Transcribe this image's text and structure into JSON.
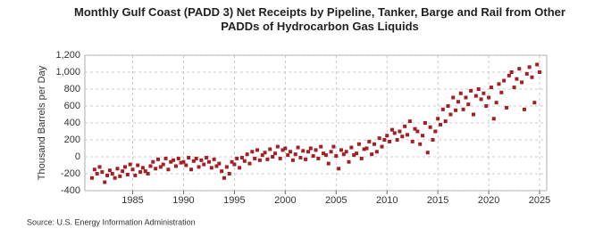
{
  "chart_data": {
    "type": "scatter",
    "title": "Monthly Gulf Coast (PADD 3) Net Receipts by Pipeline, Tanker, Barge and Rail from Other PADDs of Hydrocarbon Gas Liquids",
    "y_label": "Thousand Barrels per Day",
    "source": "Source: U.S. Energy Information Administration",
    "color": "#a31f24",
    "grid": true,
    "xlim": [
      1980.3,
      2025.7
    ],
    "ylim": [
      -400,
      1200
    ],
    "xticks": [
      1985,
      1990,
      1995,
      2000,
      2005,
      2010,
      2015,
      2020,
      2025
    ],
    "yticks": [
      {
        "value": 1200,
        "label": "1,200"
      },
      {
        "value": 1000,
        "label": "1,000"
      },
      800,
      600,
      400,
      200,
      0,
      -200,
      -400
    ],
    "x": [
      1981,
      1981.25,
      1981.5,
      1981.75,
      1982,
      1982.25,
      1982.5,
      1982.75,
      1983,
      1983.25,
      1983.5,
      1983.75,
      1984,
      1984.25,
      1984.5,
      1984.75,
      1985,
      1985.25,
      1985.5,
      1985.75,
      1986,
      1986.25,
      1986.5,
      1986.75,
      1987,
      1987.25,
      1987.5,
      1987.75,
      1988,
      1988.25,
      1988.5,
      1988.75,
      1989,
      1989.25,
      1989.5,
      1989.75,
      1990,
      1990.25,
      1990.5,
      1990.75,
      1991,
      1991.25,
      1991.5,
      1991.75,
      1992,
      1992.25,
      1992.5,
      1992.75,
      1993,
      1993.25,
      1993.5,
      1993.75,
      1994,
      1994.25,
      1994.5,
      1994.75,
      1995,
      1995.25,
      1995.5,
      1995.75,
      1996,
      1996.25,
      1996.5,
      1996.75,
      1997,
      1997.25,
      1997.5,
      1997.75,
      1998,
      1998.25,
      1998.5,
      1998.75,
      1999,
      1999.25,
      1999.5,
      1999.75,
      2000,
      2000.25,
      2000.5,
      2000.75,
      2001,
      2001.25,
      2001.5,
      2001.75,
      2002,
      2002.25,
      2002.5,
      2002.75,
      2003,
      2003.25,
      2003.5,
      2003.75,
      2004,
      2004.25,
      2004.5,
      2004.75,
      2005,
      2005.25,
      2005.5,
      2005.75,
      2006,
      2006.25,
      2006.5,
      2006.75,
      2007,
      2007.25,
      2007.5,
      2007.75,
      2008,
      2008.25,
      2008.5,
      2008.75,
      2009,
      2009.25,
      2009.5,
      2009.75,
      2010,
      2010.25,
      2010.5,
      2010.75,
      2011,
      2011.25,
      2011.5,
      2011.75,
      2012,
      2012.25,
      2012.5,
      2012.75,
      2013,
      2013.25,
      2013.5,
      2013.75,
      2014,
      2014.25,
      2014.5,
      2014.75,
      2015,
      2015.25,
      2015.5,
      2015.75,
      2016,
      2016.25,
      2016.5,
      2016.75,
      2017,
      2017.25,
      2017.5,
      2017.75,
      2018,
      2018.25,
      2018.5,
      2018.75,
      2019,
      2019.25,
      2019.5,
      2019.75,
      2020,
      2020.25,
      2020.5,
      2020.75,
      2021,
      2021.25,
      2021.5,
      2021.75,
      2022,
      2022.25,
      2022.5,
      2022.75,
      2023,
      2023.25,
      2023.5,
      2023.75,
      2024,
      2024.25,
      2024.5,
      2024.75,
      2025
    ],
    "values": [
      -250,
      -150,
      -200,
      -120,
      -180,
      -300,
      -220,
      -160,
      -200,
      -250,
      -140,
      -230,
      -170,
      -120,
      -210,
      -90,
      -150,
      -220,
      -100,
      -180,
      -130,
      -170,
      -200,
      -110,
      -60,
      -140,
      -30,
      -120,
      -90,
      -20,
      -150,
      -60,
      -40,
      -110,
      -20,
      -70,
      -60,
      -100,
      -10,
      -150,
      -50,
      -20,
      -120,
      -40,
      -90,
      -10,
      -60,
      -130,
      -30,
      -110,
      -80,
      -170,
      -250,
      -120,
      -200,
      -60,
      -90,
      -20,
      -130,
      -10,
      -50,
      30,
      -80,
      60,
      -20,
      80,
      -40,
      20,
      50,
      -30,
      90,
      0,
      40,
      120,
      -20,
      80,
      100,
      20,
      60,
      -40,
      30,
      110,
      -10,
      70,
      -30,
      60,
      100,
      10,
      80,
      -20,
      120,
      40,
      20,
      -80,
      60,
      120,
      10,
      -140,
      80,
      30,
      60,
      -60,
      110,
      20,
      40,
      150,
      -20,
      90,
      100,
      180,
      30,
      150,
      60,
      220,
      120,
      200,
      250,
      180,
      320,
      280,
      200,
      300,
      240,
      360,
      260,
      420,
      180,
      330,
      300,
      150,
      250,
      400,
      50,
      350,
      200,
      300,
      450,
      380,
      560,
      420,
      600,
      500,
      700,
      550,
      650,
      750,
      560,
      700,
      620,
      780,
      500,
      720,
      800,
      680,
      750,
      600,
      700,
      820,
      450,
      640,
      860,
      760,
      900,
      580,
      960,
      1000,
      820,
      920,
      1040,
      880,
      560,
      980,
      1060,
      940,
      640,
      1090,
      1000
    ]
  }
}
